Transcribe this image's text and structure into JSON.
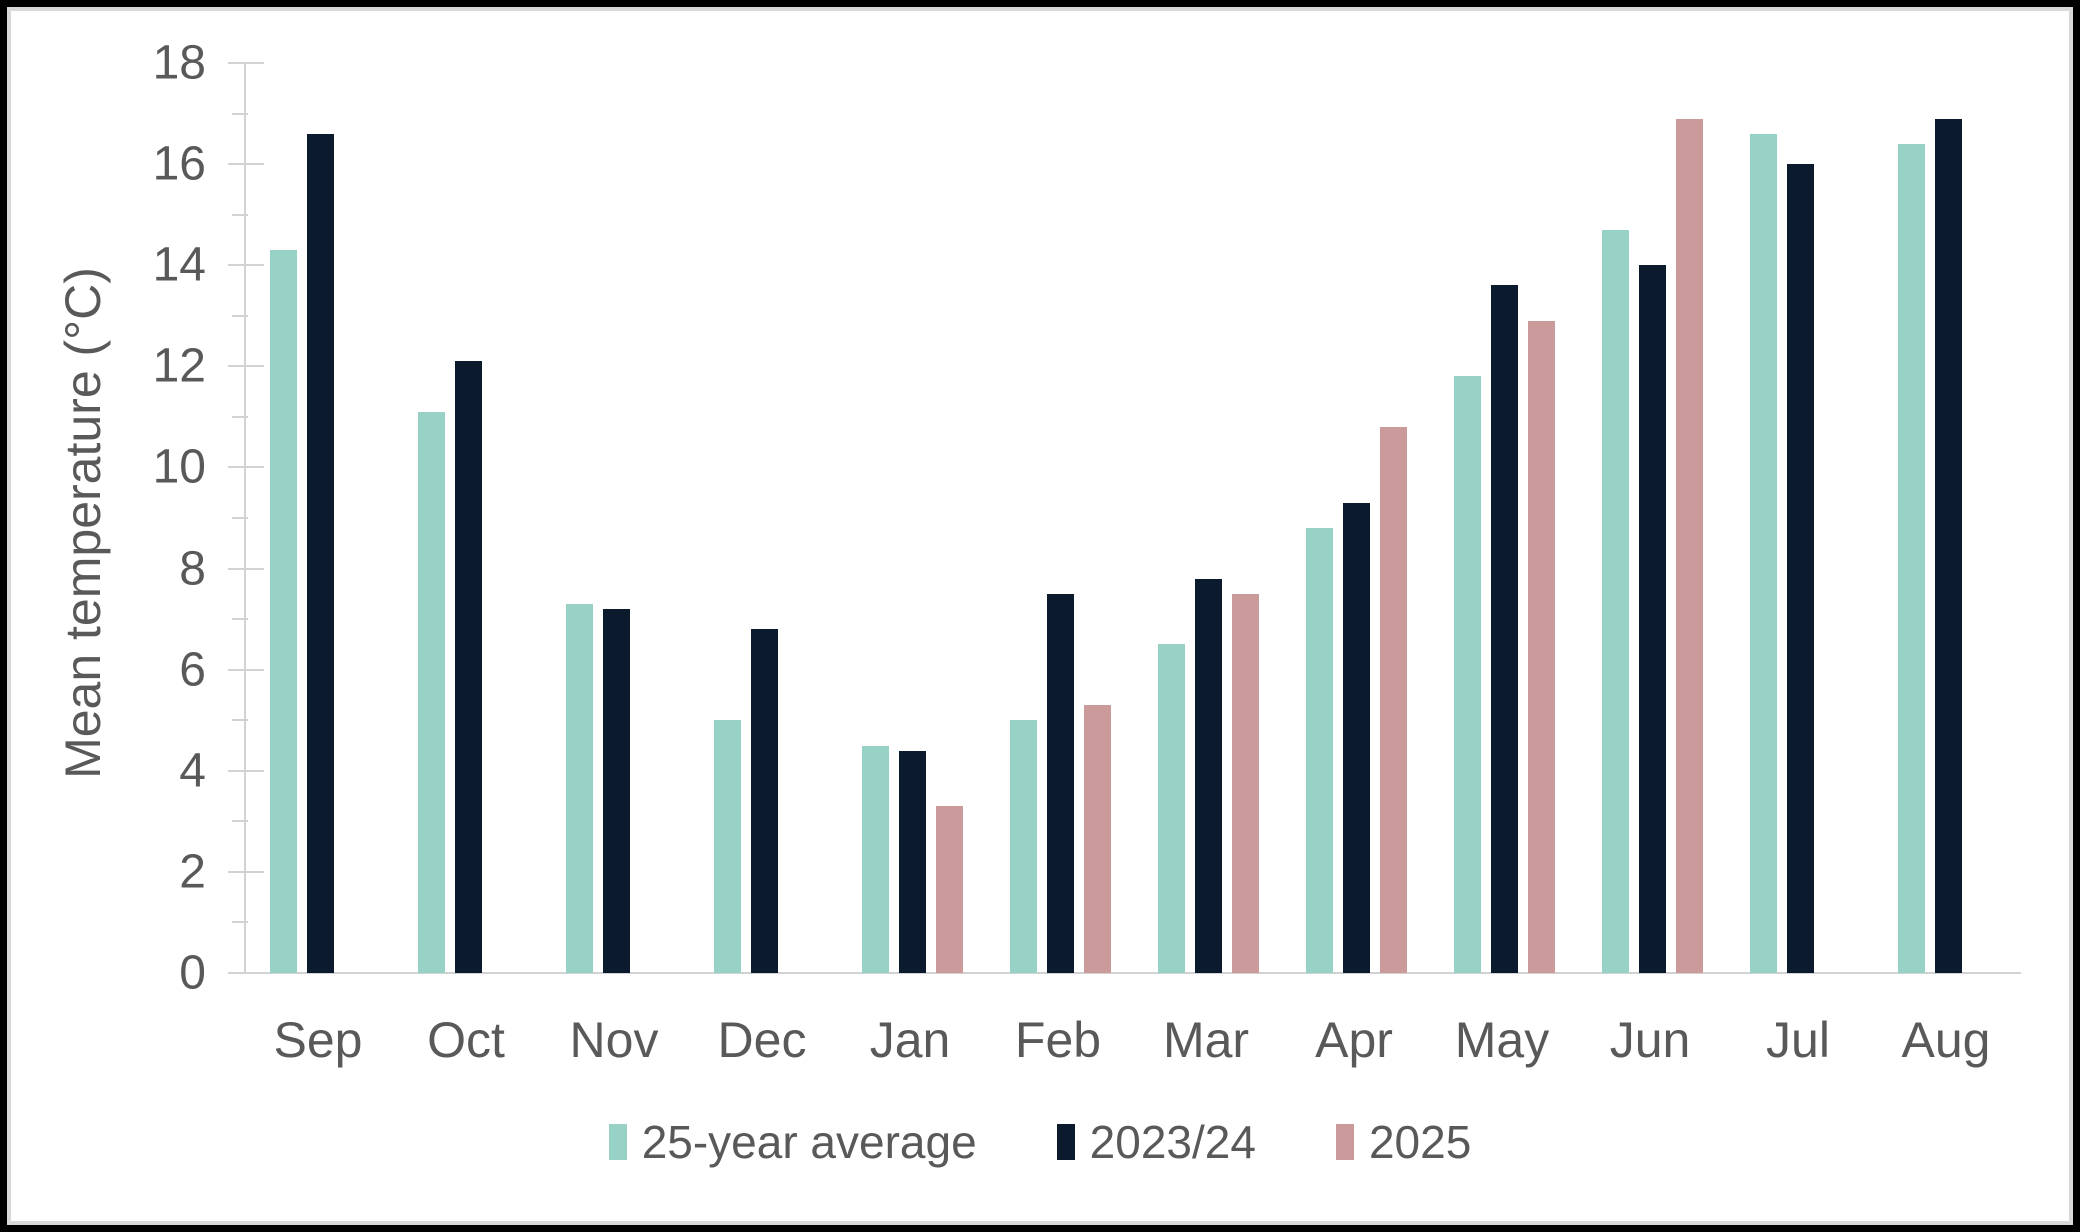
{
  "chart_data": {
    "type": "bar",
    "title": "",
    "ylabel": "Mean temperature (°C)",
    "xlabel": "",
    "ylim": [
      0,
      18
    ],
    "ytick_step": 2,
    "minor_tick_step": 1,
    "grid": false,
    "legend_position": "bottom",
    "categories": [
      "Sep",
      "Oct",
      "Nov",
      "Dec",
      "Jan",
      "Feb",
      "Mar",
      "Apr",
      "May",
      "Jun",
      "Jul",
      "Aug"
    ],
    "series": [
      {
        "name": "25-year average",
        "color": "#98d1c5",
        "values": [
          14.3,
          11.1,
          7.3,
          5.0,
          4.5,
          5.0,
          6.5,
          8.8,
          11.8,
          14.7,
          16.6,
          16.4
        ]
      },
      {
        "name": "2023/24",
        "color": "#0b1a2c",
        "values": [
          16.6,
          12.1,
          7.2,
          6.8,
          4.4,
          7.5,
          7.8,
          9.3,
          13.6,
          14.0,
          16.0,
          16.9
        ]
      },
      {
        "name": "2025",
        "color": "#cb9a9b",
        "values": [
          null,
          null,
          null,
          null,
          3.3,
          5.3,
          7.5,
          10.8,
          12.9,
          16.9,
          null,
          null
        ]
      }
    ]
  },
  "styles": {
    "axis_color": "#d2d2d2",
    "text_color": "#595959",
    "frame_border": "#000000",
    "frame_inner_edge": "#d9d9d9",
    "background": "#ffffff"
  }
}
